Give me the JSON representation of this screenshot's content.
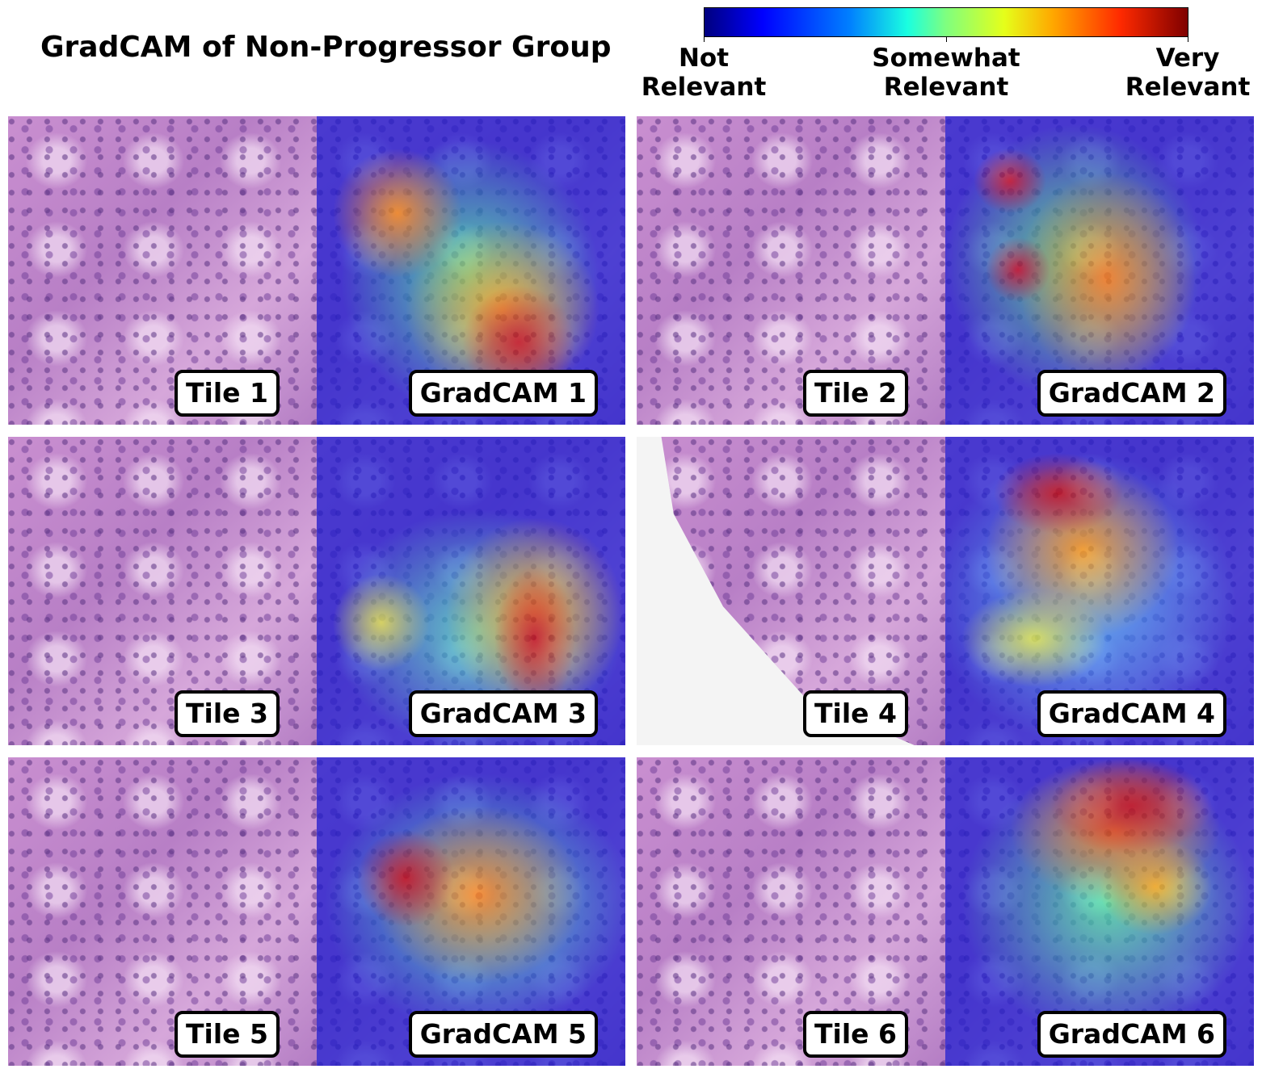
{
  "title": "GradCAM of Non-Progressor Group",
  "colorbar": {
    "labels": [
      "Not\nRelevant",
      "Somewhat\nRelevant",
      "Very\nRelevant"
    ],
    "colors": [
      "#00007f",
      "#0000ff",
      "#007fff",
      "#1affe0",
      "#7fff7f",
      "#e5ff1a",
      "#ffa800",
      "#ff2a00",
      "#7f0000"
    ]
  },
  "pairs": [
    {
      "tile": "Tile 1",
      "gradcam": "GradCAM 1"
    },
    {
      "tile": "Tile 2",
      "gradcam": "GradCAM 2"
    },
    {
      "tile": "Tile 3",
      "gradcam": "GradCAM 3"
    },
    {
      "tile": "Tile 4",
      "gradcam": "GradCAM 4"
    },
    {
      "tile": "Tile 5",
      "gradcam": "GradCAM 5"
    },
    {
      "tile": "Tile 6",
      "gradcam": "GradCAM 6"
    }
  ]
}
